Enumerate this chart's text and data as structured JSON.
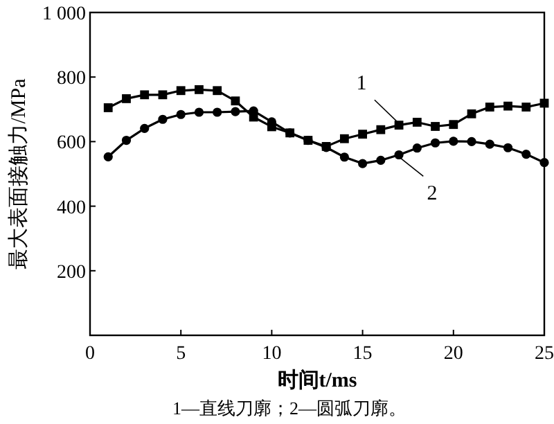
{
  "chart_data": {
    "type": "line",
    "xlabel": "时间t/ms",
    "ylabel": "最大表面接触力/MPa",
    "x": [
      1,
      2,
      3,
      4,
      5,
      6,
      7,
      8,
      9,
      10,
      11,
      12,
      13,
      14,
      15,
      16,
      17,
      18,
      19,
      20,
      21,
      22,
      23,
      24,
      25
    ],
    "series": [
      {
        "name": "1",
        "color": "#000000",
        "marker": "square",
        "values": [
          705,
          733,
          745,
          745,
          758,
          761,
          758,
          726,
          676,
          646,
          627,
          604,
          585,
          609,
          623,
          637,
          651,
          660,
          647,
          653,
          686,
          707,
          710,
          707,
          719
        ]
      },
      {
        "name": "2",
        "color": "#000000",
        "marker": "circle",
        "values": [
          553,
          604,
          641,
          669,
          684,
          691,
          691,
          693,
          695,
          661,
          627,
          604,
          582,
          552,
          532,
          542,
          559,
          580,
          596,
          601,
          600,
          592,
          581,
          561,
          535
        ]
      }
    ],
    "xlim": [
      0,
      25
    ],
    "ylim": [
      0,
      1000
    ],
    "xticks": [
      0,
      5,
      10,
      15,
      20,
      25
    ],
    "yticks": [
      {
        "value": 0,
        "label": null
      },
      200,
      400,
      600,
      800,
      {
        "value": 1000,
        "label": "1 000"
      }
    ],
    "grid": false,
    "legend": "right",
    "annotations": [
      "1—直线刀廓；2—圆弧刀廓。"
    ]
  }
}
